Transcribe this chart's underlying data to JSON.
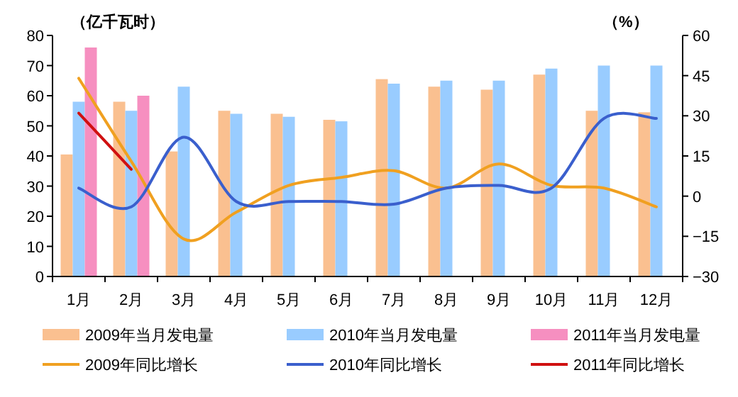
{
  "chart_data": {
    "type": "bar",
    "ylabel": "（亿千瓦时）",
    "y2label": "（%）",
    "categories": [
      "1月",
      "2月",
      "3月",
      "4月",
      "5月",
      "6月",
      "7月",
      "8月",
      "9月",
      "10月",
      "11月",
      "12月"
    ],
    "series": [
      {
        "name": "2009年当月发电量",
        "color": "#fac090",
        "values": [
          40.5,
          58,
          41.5,
          55,
          54,
          52,
          65.5,
          63,
          62,
          67,
          55,
          54.5
        ]
      },
      {
        "name": "2010年当月发电量",
        "color": "#99ccff",
        "values": [
          58,
          55,
          63,
          54,
          53,
          51.5,
          64,
          65,
          65,
          69,
          70,
          70
        ]
      },
      {
        "name": "2011年当月发电量",
        "color": "#f68fc0",
        "values": [
          76,
          60,
          null,
          null,
          null,
          null,
          null,
          null,
          null,
          null,
          null,
          null
        ]
      },
      {
        "name": "2009年同比增长",
        "type": "line",
        "axis": "y2",
        "color": "#f0a020",
        "values": [
          44,
          13,
          -16,
          -6,
          4,
          7,
          9.5,
          3,
          12,
          4,
          3,
          -4
        ]
      },
      {
        "name": "2010年同比增长",
        "type": "line",
        "axis": "y2",
        "color": "#3a5fcd",
        "values": [
          3,
          -4,
          22,
          -2,
          -2,
          -2,
          -3,
          3,
          4,
          3,
          29,
          29
        ]
      },
      {
        "name": "2011年同比增长",
        "type": "line",
        "axis": "y2",
        "color": "#d01010",
        "values": [
          31,
          10,
          null,
          null,
          null,
          null,
          null,
          null,
          null,
          null,
          null,
          null
        ]
      }
    ],
    "ylim": [
      0,
      80
    ],
    "yticks": [
      0,
      10,
      20,
      30,
      40,
      50,
      60,
      70,
      80
    ],
    "y2lim": [
      -30,
      60
    ],
    "y2ticks": [
      -30,
      -15,
      0,
      15,
      30,
      45,
      60
    ],
    "legend": "bottom",
    "grid": false
  }
}
